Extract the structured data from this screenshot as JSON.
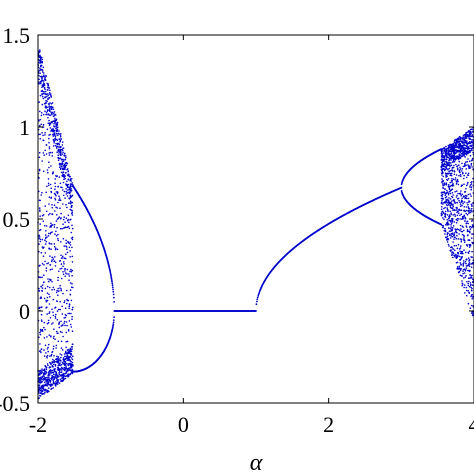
{
  "chart_data": {
    "type": "scatter",
    "title": "",
    "xlabel": "α",
    "ylabel": "",
    "xlim": [
      -2,
      4
    ],
    "ylim": [
      -0.5,
      1.5
    ],
    "xticks": [
      -2,
      0,
      2,
      4
    ],
    "yticks": [
      -0.5,
      0,
      0.5,
      1,
      1.5
    ],
    "xtick_labels": [
      "-2",
      "0",
      "2",
      "4"
    ],
    "ytick_labels": [
      "-0.5",
      "0",
      "0.5",
      "1",
      "1.5"
    ],
    "grid": false,
    "legend": "none",
    "color": "#0000cc",
    "series": [
      {
        "values": [
          [
            -2.0,
            1.46
          ],
          [
            -2.0,
            -0.48
          ],
          [
            -1.9,
            1.2
          ],
          [
            -1.9,
            -0.45
          ],
          [
            -1.8,
            1.0
          ],
          [
            -1.8,
            -0.4
          ],
          [
            -1.7,
            0.8
          ],
          [
            -1.7,
            -0.35
          ],
          [
            -1.6,
            0.72
          ],
          [
            -1.6,
            -0.3
          ],
          [
            -1.5,
            0.64
          ],
          [
            -1.5,
            -0.32
          ],
          [
            -1.45,
            0.6
          ],
          [
            -1.45,
            -0.34
          ],
          [
            -1.4,
            0.53
          ],
          [
            -1.4,
            -0.31
          ],
          [
            -1.3,
            0.42
          ],
          [
            -1.3,
            -0.28
          ],
          [
            -1.2,
            0.3
          ],
          [
            -1.2,
            -0.22
          ],
          [
            -1.1,
            0.17
          ],
          [
            -1.1,
            -0.13
          ],
          [
            -1.0,
            0.0
          ],
          [
            -0.5,
            0.0
          ],
          [
            0.0,
            0.0
          ],
          [
            0.5,
            0.0
          ],
          [
            1.0,
            0.0
          ],
          [
            1.2,
            0.13
          ],
          [
            1.5,
            0.27
          ],
          [
            2.0,
            0.44
          ],
          [
            2.5,
            0.57
          ],
          [
            2.9,
            0.65
          ],
          [
            3.0,
            0.67
          ],
          [
            3.2,
            0.57
          ],
          [
            3.2,
            0.77
          ],
          [
            3.4,
            0.51
          ],
          [
            3.4,
            0.84
          ],
          [
            3.55,
            0.47
          ],
          [
            3.55,
            0.88
          ],
          [
            3.6,
            0.35
          ],
          [
            3.6,
            0.9
          ],
          [
            3.7,
            0.25
          ],
          [
            3.7,
            0.93
          ],
          [
            3.8,
            0.15
          ],
          [
            3.8,
            0.95
          ],
          [
            3.9,
            0.05
          ],
          [
            3.9,
            0.98
          ],
          [
            4.0,
            0.0
          ],
          [
            4.0,
            1.0
          ]
        ]
      }
    ]
  }
}
